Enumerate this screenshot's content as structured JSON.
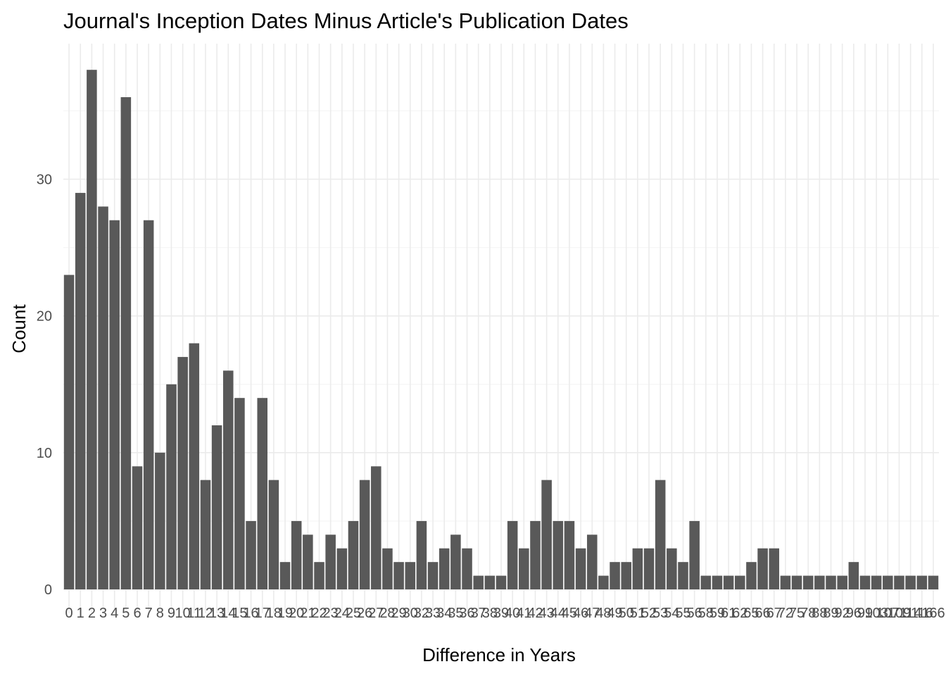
{
  "chart_data": {
    "type": "bar",
    "title": "Journal's Inception Dates Minus Article's Publication Dates",
    "xlabel": "Difference in Years",
    "ylabel": "Count",
    "categories": [
      "0",
      "1",
      "2",
      "3",
      "4",
      "5",
      "6",
      "7",
      "8",
      "9",
      "10",
      "11",
      "12",
      "13",
      "14",
      "15",
      "16",
      "17",
      "18",
      "19",
      "20",
      "21",
      "22",
      "23",
      "24",
      "25",
      "26",
      "27",
      "28",
      "29",
      "30",
      "32",
      "33",
      "34",
      "35",
      "36",
      "37",
      "38",
      "39",
      "40",
      "41",
      "42",
      "43",
      "44",
      "45",
      "46",
      "47",
      "48",
      "49",
      "50",
      "51",
      "52",
      "53",
      "54",
      "55",
      "56",
      "58",
      "59",
      "61",
      "62",
      "65",
      "66",
      "67",
      "72",
      "75",
      "78",
      "88",
      "89",
      "92",
      "96",
      "99",
      "103",
      "107",
      "109",
      "114",
      "116",
      "166"
    ],
    "values": [
      23,
      29,
      38,
      28,
      27,
      36,
      9,
      27,
      10,
      15,
      17,
      18,
      8,
      12,
      16,
      14,
      5,
      14,
      8,
      2,
      5,
      4,
      2,
      4,
      3,
      5,
      8,
      9,
      3,
      2,
      2,
      5,
      2,
      3,
      4,
      3,
      1,
      1,
      1,
      5,
      3,
      5,
      8,
      5,
      5,
      3,
      4,
      1,
      2,
      2,
      3,
      3,
      8,
      3,
      2,
      5,
      1,
      1,
      1,
      1,
      2,
      3,
      3,
      1,
      1,
      1,
      1,
      1,
      1,
      2,
      1,
      1,
      1,
      1,
      1,
      1,
      1
    ],
    "yticks": [
      0,
      10,
      20,
      30
    ],
    "ylim": [
      0,
      40
    ],
    "bar_color": "#595959",
    "grid": true,
    "legend": "none"
  }
}
